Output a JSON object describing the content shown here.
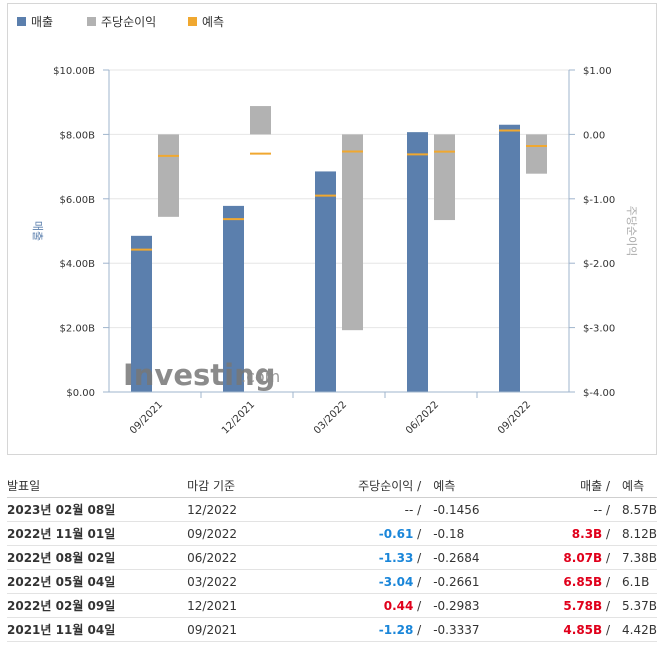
{
  "legend": {
    "revenue": "매출",
    "eps": "주당순이익",
    "forecast": "예측"
  },
  "colors": {
    "revenue": "#5b7fad",
    "eps": "#b2b2b2",
    "forecast": "#f0a830",
    "positive": "#e0001b",
    "negative": "#1a86d9",
    "grid_axis": "#9fb4cc"
  },
  "watermark": {
    "brand": "Investing",
    "suffix": ".com"
  },
  "chart_data": {
    "type": "bar",
    "categories": [
      "09/2021",
      "12/2021",
      "03/2022",
      "06/2022",
      "09/2022"
    ],
    "left_axis": {
      "label": "매출",
      "ticks": [
        "$0.00",
        "$2.00B",
        "$4.00B",
        "$6.00B",
        "$8.00B",
        "$10.00B"
      ],
      "range": [
        0,
        10
      ]
    },
    "right_axis": {
      "label": "주당순이익",
      "ticks": [
        "$-4.00",
        "$-3.00",
        "$-2.00",
        "$-1.00",
        "0.00",
        "$1.00"
      ],
      "range": [
        -4,
        1
      ]
    },
    "series": [
      {
        "name": "매출",
        "axis": "left",
        "values": [
          4.85,
          5.78,
          6.85,
          8.07,
          8.3
        ],
        "forecast": [
          4.42,
          5.37,
          6.1,
          7.38,
          8.12
        ]
      },
      {
        "name": "주당순이익",
        "axis": "right",
        "values": [
          -1.28,
          0.44,
          -3.04,
          -1.33,
          -0.61
        ],
        "forecast": [
          -0.3337,
          -0.2983,
          -0.2661,
          -0.2684,
          -0.18
        ]
      }
    ]
  },
  "table": {
    "headers": {
      "date": "발표일",
      "period": "마감 기준",
      "eps": "주당순이익",
      "eps_fc": "예측",
      "rev": "매출",
      "rev_fc": "예측",
      "sep": " /"
    },
    "rows": [
      {
        "date": "2023년 02월 08일",
        "period": "12/2022",
        "eps": "--",
        "eps_class": "neutral",
        "eps_fc": "-0.1456",
        "rev": "--",
        "rev_class": "neutral",
        "rev_fc": "8.57B"
      },
      {
        "date": "2022년 11월 01일",
        "period": "09/2022",
        "eps": "-0.61",
        "eps_class": "neg",
        "eps_fc": "-0.18",
        "rev": "8.3B",
        "rev_class": "pos",
        "rev_fc": "8.12B"
      },
      {
        "date": "2022년 08월 02일",
        "period": "06/2022",
        "eps": "-1.33",
        "eps_class": "neg",
        "eps_fc": "-0.2684",
        "rev": "8.07B",
        "rev_class": "pos",
        "rev_fc": "7.38B"
      },
      {
        "date": "2022년 05월 04일",
        "period": "03/2022",
        "eps": "-3.04",
        "eps_class": "neg",
        "eps_fc": "-0.2661",
        "rev": "6.85B",
        "rev_class": "pos",
        "rev_fc": "6.1B"
      },
      {
        "date": "2022년 02월 09일",
        "period": "12/2021",
        "eps": "0.44",
        "eps_class": "pos",
        "eps_fc": "-0.2983",
        "rev": "5.78B",
        "rev_class": "pos",
        "rev_fc": "5.37B"
      },
      {
        "date": "2021년 11월 04일",
        "period": "09/2021",
        "eps": "-1.28",
        "eps_class": "neg",
        "eps_fc": "-0.3337",
        "rev": "4.85B",
        "rev_class": "pos",
        "rev_fc": "4.42B"
      }
    ]
  }
}
